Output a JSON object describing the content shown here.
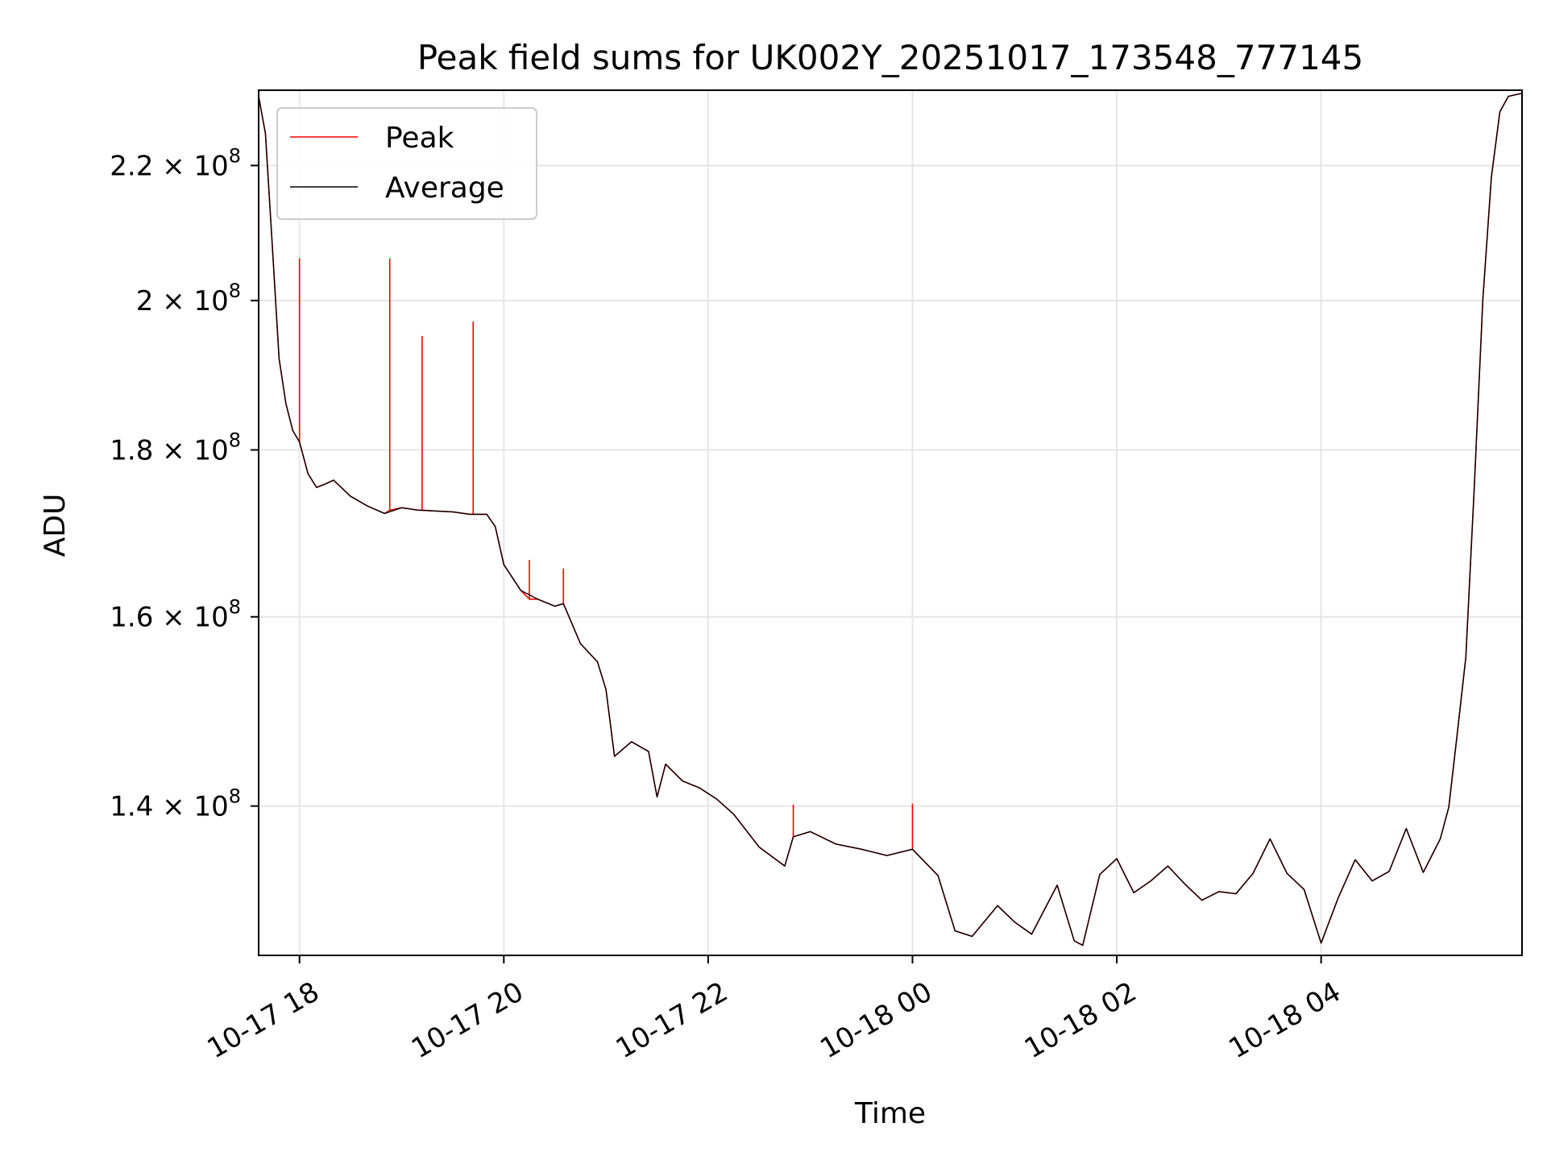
{
  "chart_data": {
    "type": "line",
    "title": "Peak field sums for UK002Y_20251017_173548_777145",
    "xlabel": "Time",
    "ylabel": "ADU",
    "y_scale": "log",
    "xlim": [
      "2025-10-17 17:36",
      "2025-10-18 05:58"
    ],
    "ylim": [
      126000000,
      232000000
    ],
    "grid": true,
    "legend_position": "top-left",
    "x_ticks": [
      {
        "value": "2025-10-17 18:00",
        "label": "10-17 18"
      },
      {
        "value": "2025-10-17 20:00",
        "label": "10-17 20"
      },
      {
        "value": "2025-10-17 22:00",
        "label": "10-17 22"
      },
      {
        "value": "2025-10-18 00:00",
        "label": "10-18 00"
      },
      {
        "value": "2025-10-18 02:00",
        "label": "10-18 02"
      },
      {
        "value": "2025-10-18 04:00",
        "label": "10-18 04"
      }
    ],
    "y_ticks": [
      {
        "value": 140000000,
        "mantissa": "1.4"
      },
      {
        "value": 160000000,
        "mantissa": "1.6"
      },
      {
        "value": 180000000,
        "mantissa": "1.8"
      },
      {
        "value": 200000000,
        "mantissa": "2"
      },
      {
        "value": 220000000,
        "mantissa": "2.2"
      }
    ],
    "tick_base": "10",
    "tick_exponent": "8",
    "series": [
      {
        "name": "Average",
        "color": "#000000",
        "x": [
          "2025-10-17 17:36",
          "2025-10-17 17:40",
          "2025-10-17 17:44",
          "2025-10-17 17:48",
          "2025-10-17 17:52",
          "2025-10-17 17:56",
          "2025-10-17 18:00",
          "2025-10-17 18:05",
          "2025-10-17 18:10",
          "2025-10-17 18:15",
          "2025-10-17 18:20",
          "2025-10-17 18:30",
          "2025-10-17 18:40",
          "2025-10-17 18:50",
          "2025-10-17 19:00",
          "2025-10-17 19:10",
          "2025-10-17 19:20",
          "2025-10-17 19:30",
          "2025-10-17 19:40",
          "2025-10-17 19:50",
          "2025-10-17 19:55",
          "2025-10-17 20:00",
          "2025-10-17 20:10",
          "2025-10-17 20:20",
          "2025-10-17 20:30",
          "2025-10-17 20:35",
          "2025-10-17 20:45",
          "2025-10-17 20:55",
          "2025-10-17 21:00",
          "2025-10-17 21:05",
          "2025-10-17 21:15",
          "2025-10-17 21:25",
          "2025-10-17 21:30",
          "2025-10-17 21:35",
          "2025-10-17 21:45",
          "2025-10-17 21:55",
          "2025-10-17 22:05",
          "2025-10-17 22:15",
          "2025-10-17 22:30",
          "2025-10-17 22:45",
          "2025-10-17 22:50",
          "2025-10-17 23:00",
          "2025-10-17 23:15",
          "2025-10-17 23:30",
          "2025-10-17 23:45",
          "2025-10-18 00:00",
          "2025-10-18 00:15",
          "2025-10-18 00:25",
          "2025-10-18 00:35",
          "2025-10-18 00:50",
          "2025-10-18 01:00",
          "2025-10-18 01:10",
          "2025-10-18 01:25",
          "2025-10-18 01:35",
          "2025-10-18 01:40",
          "2025-10-18 01:50",
          "2025-10-18 02:00",
          "2025-10-18 02:10",
          "2025-10-18 02:20",
          "2025-10-18 02:30",
          "2025-10-18 02:40",
          "2025-10-18 02:50",
          "2025-10-18 03:00",
          "2025-10-18 03:10",
          "2025-10-18 03:20",
          "2025-10-18 03:30",
          "2025-10-18 03:40",
          "2025-10-18 03:50",
          "2025-10-18 04:00",
          "2025-10-18 04:10",
          "2025-10-18 04:20",
          "2025-10-18 04:30",
          "2025-10-18 04:40",
          "2025-10-18 04:50",
          "2025-10-18 05:00",
          "2025-10-18 05:10",
          "2025-10-18 05:15",
          "2025-10-18 05:20",
          "2025-10-18 05:25",
          "2025-10-18 05:30",
          "2025-10-18 05:35",
          "2025-10-18 05:40",
          "2025-10-18 05:45",
          "2025-10-18 05:50",
          "2025-10-18 05:58"
        ],
        "y": [
          231000000,
          225000000,
          208000000,
          192000000,
          186000000,
          182500000,
          181000000,
          177000000,
          175300000,
          175700000,
          176200000,
          174200000,
          173000000,
          172100000,
          172800000,
          172500000,
          172400000,
          172300000,
          172000000,
          172000000,
          170500000,
          166000000,
          163000000,
          162000000,
          161200000,
          161500000,
          157000000,
          155000000,
          152000000,
          145000000,
          146500000,
          145500000,
          140900000,
          144200000,
          142500000,
          141800000,
          140700000,
          139200000,
          136000000,
          134200000,
          137000000,
          137500000,
          136300000,
          135800000,
          135200000,
          135800000,
          133300000,
          128200000,
          127700000,
          130500000,
          129000000,
          127900000,
          132400000,
          127300000,
          126900000,
          133400000,
          134900000,
          131700000,
          132800000,
          134200000,
          132500000,
          131000000,
          131800000,
          131600000,
          133500000,
          136800000,
          133500000,
          132000000,
          127100000,
          131200000,
          134800000,
          132800000,
          133700000,
          137800000,
          133600000,
          136800000,
          139900000,
          147400000,
          155500000,
          175500000,
          200200000,
          218200000,
          228500000,
          231000000,
          231500000
        ]
      },
      {
        "name": "Peak",
        "color": "#ff0000",
        "x": [
          "2025-10-17 17:36",
          "2025-10-17 17:40",
          "2025-10-17 17:44",
          "2025-10-17 17:48",
          "2025-10-17 17:52",
          "2025-10-17 17:56",
          "2025-10-17 18:00",
          "2025-10-17 18:00",
          "2025-10-17 18:00",
          "2025-10-17 18:05",
          "2025-10-17 18:10",
          "2025-10-17 18:15",
          "2025-10-17 18:20",
          "2025-10-17 18:30",
          "2025-10-17 18:40",
          "2025-10-17 18:50",
          "2025-10-17 18:53",
          "2025-10-17 18:53",
          "2025-10-17 18:53",
          "2025-10-17 19:00",
          "2025-10-17 19:10",
          "2025-10-17 19:12",
          "2025-10-17 19:12",
          "2025-10-17 19:12",
          "2025-10-17 19:20",
          "2025-10-17 19:30",
          "2025-10-17 19:40",
          "2025-10-17 19:42",
          "2025-10-17 19:42",
          "2025-10-17 19:42",
          "2025-10-17 19:50",
          "2025-10-17 19:55",
          "2025-10-17 20:00",
          "2025-10-17 20:10",
          "2025-10-17 20:15",
          "2025-10-17 20:15",
          "2025-10-17 20:15",
          "2025-10-17 20:20",
          "2025-10-17 20:30",
          "2025-10-17 20:35",
          "2025-10-17 20:35",
          "2025-10-17 20:35",
          "2025-10-17 20:45",
          "2025-10-17 20:55",
          "2025-10-17 21:00",
          "2025-10-17 21:05",
          "2025-10-17 21:15",
          "2025-10-17 21:25",
          "2025-10-17 21:30",
          "2025-10-17 21:35",
          "2025-10-17 21:45",
          "2025-10-17 21:55",
          "2025-10-17 22:05",
          "2025-10-17 22:15",
          "2025-10-17 22:30",
          "2025-10-17 22:45",
          "2025-10-17 22:50",
          "2025-10-17 22:50",
          "2025-10-17 22:50",
          "2025-10-17 23:00",
          "2025-10-17 23:15",
          "2025-10-17 23:30",
          "2025-10-17 23:45",
          "2025-10-18 00:00",
          "2025-10-18 00:00",
          "2025-10-18 00:00",
          "2025-10-18 00:15",
          "2025-10-18 00:25",
          "2025-10-18 00:35",
          "2025-10-18 00:50",
          "2025-10-18 01:00",
          "2025-10-18 01:10",
          "2025-10-18 01:25",
          "2025-10-18 01:35",
          "2025-10-18 01:40",
          "2025-10-18 01:50",
          "2025-10-18 02:00",
          "2025-10-18 02:10",
          "2025-10-18 02:20",
          "2025-10-18 02:30",
          "2025-10-18 02:40",
          "2025-10-18 02:50",
          "2025-10-18 03:00",
          "2025-10-18 03:10",
          "2025-10-18 03:20",
          "2025-10-18 03:30",
          "2025-10-18 03:40",
          "2025-10-18 03:50",
          "2025-10-18 04:00",
          "2025-10-18 04:10",
          "2025-10-18 04:20",
          "2025-10-18 04:30",
          "2025-10-18 04:40",
          "2025-10-18 04:50",
          "2025-10-18 05:00",
          "2025-10-18 05:10",
          "2025-10-18 05:15",
          "2025-10-18 05:20",
          "2025-10-18 05:25",
          "2025-10-18 05:30",
          "2025-10-18 05:35",
          "2025-10-18 05:40",
          "2025-10-18 05:45",
          "2025-10-18 05:50",
          "2025-10-18 05:58"
        ],
        "y": [
          231000000,
          225000000,
          208000000,
          192000000,
          186000000,
          182500000,
          181000000,
          206000000,
          181000000,
          177000000,
          175300000,
          175700000,
          176200000,
          174200000,
          173000000,
          172100000,
          172500000,
          206000000,
          172500000,
          172800000,
          172500000,
          172500000,
          195000000,
          172500000,
          172400000,
          172300000,
          172000000,
          172000000,
          197000000,
          172000000,
          172000000,
          170500000,
          166000000,
          163000000,
          162000000,
          166500000,
          162000000,
          162000000,
          161200000,
          161500000,
          165500000,
          161500000,
          157000000,
          155000000,
          152000000,
          145000000,
          146500000,
          145500000,
          140900000,
          144200000,
          142500000,
          141800000,
          140700000,
          139200000,
          136000000,
          134200000,
          137000000,
          140100000,
          137000000,
          137500000,
          136300000,
          135800000,
          135200000,
          135800000,
          140200000,
          135800000,
          133300000,
          128200000,
          127700000,
          130500000,
          129000000,
          127900000,
          132400000,
          127300000,
          126900000,
          133400000,
          134900000,
          131700000,
          132800000,
          134200000,
          132500000,
          131000000,
          131800000,
          131600000,
          133500000,
          136800000,
          133500000,
          132000000,
          127100000,
          131200000,
          134800000,
          132800000,
          133700000,
          137800000,
          133600000,
          136800000,
          139900000,
          147400000,
          155500000,
          175500000,
          200200000,
          218200000,
          228500000,
          231000000,
          231500000
        ]
      }
    ]
  }
}
